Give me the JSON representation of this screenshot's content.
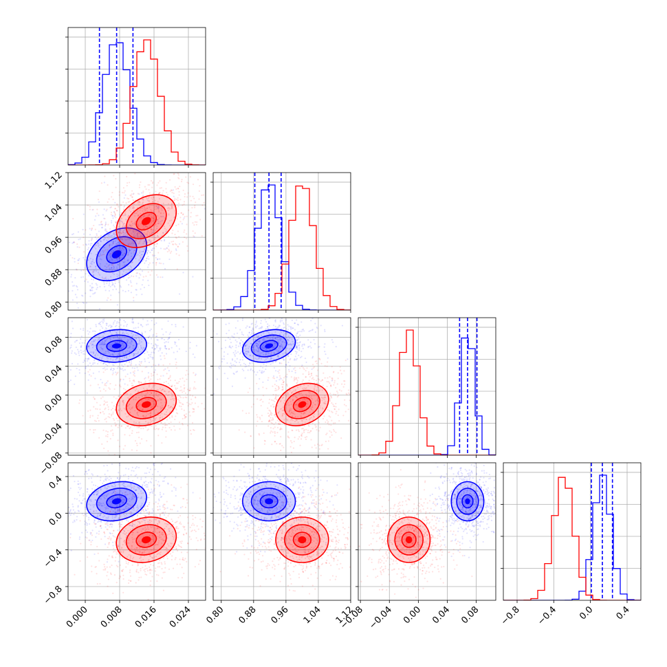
{
  "chart_data": {
    "type": "corner",
    "title": "",
    "parameters": [
      {
        "ticks": [
          0.0,
          0.008,
          0.016,
          0.024
        ],
        "tick_labels": [
          "0.000",
          "0.008",
          "0.016",
          "0.024"
        ],
        "range": [
          -0.004,
          0.028
        ]
      },
      {
        "ticks": [
          0.8,
          0.88,
          0.96,
          1.04,
          1.12
        ],
        "tick_labels": [
          "0.80",
          "0.88",
          "0.96",
          "1.04",
          "1.12"
        ],
        "range": [
          0.78,
          1.12
        ]
      },
      {
        "ticks": [
          -0.08,
          -0.04,
          0.0,
          0.04,
          0.08
        ],
        "tick_labels": [
          "−0.08",
          "−0.04",
          "0.00",
          "0.04",
          "0.08"
        ],
        "range": [
          -0.083,
          0.107
        ]
      },
      {
        "ticks": [
          -0.8,
          -0.4,
          0.0,
          0.4
        ],
        "tick_labels": [
          "−0.8",
          "−0.4",
          "0.0",
          "0.4"
        ],
        "range": [
          -0.95,
          0.55
        ]
      }
    ],
    "series": [
      {
        "color": "#0000ff",
        "means": [
          0.0073,
          0.918,
          0.068,
          0.13
        ],
        "stds": [
          0.0031,
          0.029,
          0.01,
          0.095
        ],
        "correlations": {
          "1-0": 0.35,
          "2-0": 0.1,
          "2-1": 0.25,
          "3-0": 0.2,
          "3-1": 0.0,
          "3-2": 0.0
        },
        "quantiles": [
          [
            0.0033,
            0.0073,
            0.0111
          ],
          [
            0.883,
            0.918,
            0.948
          ],
          [
            0.057,
            0.068,
            0.081
          ],
          [
            0.01,
            0.13,
            0.24
          ]
        ]
      },
      {
        "color": "#ff0000",
        "means": [
          0.0142,
          1.0,
          -0.013,
          -0.29
        ],
        "stds": [
          0.0031,
          0.029,
          0.013,
          0.11
        ],
        "correlations": {
          "1-0": 0.35,
          "2-0": 0.2,
          "2-1": 0.25,
          "3-0": 0.15,
          "3-1": 0.0,
          "3-2": 0.0
        },
        "quantiles": []
      }
    ],
    "histogram_bins": 20,
    "contour_levels_sigma": [
      0.5,
      1.0,
      1.5
    ],
    "grid": true
  }
}
